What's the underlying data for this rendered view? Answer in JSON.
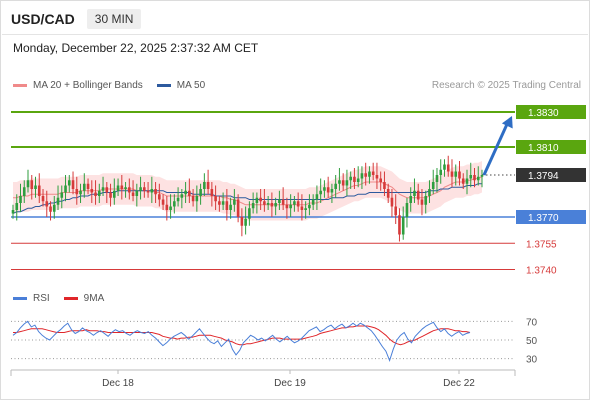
{
  "header": {
    "symbol": "USD/CAD",
    "timeframe": "30 MIN",
    "timestamp": "Monday, December 22, 2025 2:37:32 AM CET"
  },
  "legend": {
    "ma20_label": "MA 20 + Bollinger Bands",
    "ma50_label": "MA 50",
    "credit": "Research © 2025 Trading Central"
  },
  "rsi_legend": {
    "rsi_label": "RSI",
    "ma_label": "9MA"
  },
  "colors": {
    "ma20": "#f08a8a",
    "ma50": "#2d5a9e",
    "band_fill": "#fde2e2",
    "candle_up": "#2e9e3e",
    "candle_down": "#d63a3a",
    "target_green": "#5aa60f",
    "pivot_blue": "#4a80d8",
    "support_red": "#d63a3a",
    "arrow": "#2e6dc4",
    "rsi_line": "#4a7fd8",
    "rsi_ma": "#e0262a"
  },
  "chart_data": [
    {
      "type": "candlestick",
      "title": "USD/CAD 30 MIN",
      "ylim": [
        1.3734,
        1.3838
      ],
      "x_tick_labels": [
        "Dec 18",
        "Dec 19",
        "Dec 22"
      ],
      "current_price": 1.3794,
      "levels": [
        {
          "value": 1.383,
          "label": "1.3830",
          "role": "target",
          "color": "#5aa60f"
        },
        {
          "value": 1.381,
          "label": "1.3810",
          "role": "target",
          "color": "#5aa60f"
        },
        {
          "value": 1.3794,
          "label": "1.3794",
          "role": "last price",
          "color": "#444444"
        },
        {
          "value": 1.377,
          "label": "1.3770",
          "role": "pivot",
          "color": "#4a80d8"
        },
        {
          "value": 1.3755,
          "label": "1.3755",
          "role": "support",
          "color": "#d63a3a"
        },
        {
          "value": 1.374,
          "label": "1.3740",
          "role": "support",
          "color": "#d63a3a"
        }
      ],
      "close_series": [
        1.3774,
        1.3778,
        1.3782,
        1.3787,
        1.3791,
        1.3786,
        1.3788,
        1.3782,
        1.3779,
        1.3776,
        1.3773,
        1.3777,
        1.3781,
        1.3784,
        1.3788,
        1.3791,
        1.3786,
        1.3783,
        1.3785,
        1.3789,
        1.3786,
        1.3784,
        1.3782,
        1.3785,
        1.3787,
        1.3784,
        1.3781,
        1.3785,
        1.3788,
        1.3786,
        1.3787,
        1.3784,
        1.3782,
        1.3785,
        1.3787,
        1.3785,
        1.3784,
        1.3786,
        1.3783,
        1.378,
        1.3777,
        1.3774,
        1.3776,
        1.3779,
        1.3781,
        1.3783,
        1.3785,
        1.3782,
        1.3779,
        1.3782,
        1.3786,
        1.379,
        1.3786,
        1.3782,
        1.3779,
        1.3777,
        1.3779,
        1.3774,
        1.3777,
        1.378,
        1.377,
        1.3765,
        1.3769,
        1.3775,
        1.3778,
        1.3781,
        1.3779,
        1.3777,
        1.3778,
        1.3776,
        1.3778,
        1.378,
        1.3777,
        1.3775,
        1.3777,
        1.3779,
        1.3776,
        1.3774,
        1.3775,
        1.3777,
        1.378,
        1.3783,
        1.3785,
        1.3787,
        1.3784,
        1.3786,
        1.3789,
        1.3791,
        1.3788,
        1.3791,
        1.3793,
        1.379,
        1.3792,
        1.3795,
        1.3793,
        1.3796,
        1.3794,
        1.3792,
        1.379,
        1.3786,
        1.3781,
        1.3776,
        1.3771,
        1.376,
        1.377,
        1.3778,
        1.3782,
        1.3785,
        1.378,
        1.3777,
        1.3782,
        1.3786,
        1.379,
        1.3794,
        1.3797,
        1.38,
        1.3796,
        1.3793,
        1.3796,
        1.3792,
        1.3789,
        1.3792,
        1.3794,
        1.3791,
        1.3793,
        1.3794
      ],
      "ma20": [
        1.3781,
        1.3781,
        1.3782,
        1.3782,
        1.3782,
        1.3783,
        1.3783,
        1.3783,
        1.3783,
        1.3783,
        1.3783,
        1.3783,
        1.3783,
        1.3784,
        1.3784,
        1.3784,
        1.3784,
        1.3784,
        1.3785,
        1.3785,
        1.3785,
        1.3785,
        1.3785,
        1.3785,
        1.3786,
        1.3786,
        1.3786,
        1.3786,
        1.3786,
        1.3786,
        1.3786,
        1.3786,
        1.3786,
        1.3785,
        1.3785,
        1.3785,
        1.3785,
        1.3785,
        1.3784,
        1.3784,
        1.3783,
        1.3782,
        1.3782,
        1.3782,
        1.3782,
        1.3782,
        1.3782,
        1.3782,
        1.3782,
        1.3782,
        1.3782,
        1.3782,
        1.3782,
        1.3782,
        1.3782,
        1.3782,
        1.3781,
        1.3781,
        1.378,
        1.378,
        1.3779,
        1.3778,
        1.3777,
        1.3777,
        1.3777,
        1.3777,
        1.3777,
        1.3777,
        1.3777,
        1.3777,
        1.3777,
        1.3777,
        1.3777,
        1.3777,
        1.3777,
        1.3777,
        1.3777,
        1.3777,
        1.3777,
        1.3778,
        1.3778,
        1.3778,
        1.3779,
        1.378,
        1.3781,
        1.3782,
        1.3783,
        1.3784,
        1.3785,
        1.3786,
        1.3787,
        1.3788,
        1.3788,
        1.3789,
        1.379,
        1.379,
        1.379,
        1.379,
        1.379,
        1.3789,
        1.3788,
        1.3787,
        1.3785,
        1.3783,
        1.3782,
        1.3781,
        1.3781,
        1.3781,
        1.3781,
        1.3781,
        1.3781,
        1.3782,
        1.3783,
        1.3784,
        1.3785,
        1.3787,
        1.3788,
        1.3789,
        1.379,
        1.379,
        1.379,
        1.3791,
        1.3791,
        1.3792,
        1.3792,
        1.3793
      ],
      "ma50": [
        1.3772,
        1.3773,
        1.3773,
        1.3774,
        1.3775,
        1.3775,
        1.3776,
        1.3776,
        1.3777,
        1.3777,
        1.3778,
        1.3778,
        1.3779,
        1.3779,
        1.378,
        1.378,
        1.3781,
        1.3781,
        1.3782,
        1.3782,
        1.3782,
        1.3783,
        1.3783,
        1.3783,
        1.3784,
        1.3784,
        1.3784,
        1.3784,
        1.3785,
        1.3785,
        1.3785,
        1.3785,
        1.3785,
        1.3785,
        1.3785,
        1.3785,
        1.3785,
        1.3785,
        1.3785,
        1.3785,
        1.3785,
        1.3784,
        1.3784,
        1.3784,
        1.3784,
        1.3784,
        1.3784,
        1.3784,
        1.3783,
        1.3783,
        1.3783,
        1.3783,
        1.3783,
        1.3783,
        1.3782,
        1.3782,
        1.3782,
        1.3782,
        1.3782,
        1.3781,
        1.3781,
        1.3781,
        1.3781,
        1.378,
        1.378,
        1.378,
        1.378,
        1.378,
        1.378,
        1.378,
        1.378,
        1.378,
        1.378,
        1.378,
        1.378,
        1.378,
        1.378,
        1.378,
        1.378,
        1.378,
        1.378,
        1.378,
        1.378,
        1.378,
        1.378,
        1.3781,
        1.3781,
        1.3781,
        1.3781,
        1.3782,
        1.3782,
        1.3782,
        1.3783,
        1.3783,
        1.3783,
        1.3784,
        1.3784,
        1.3784,
        1.3784,
        1.3784,
        1.3784,
        1.3784,
        1.3784,
        1.3784,
        1.3784,
        1.3784,
        1.3784,
        1.3784,
        1.3784,
        1.3784,
        1.3784,
        1.3785,
        1.3785,
        1.3785,
        1.3786,
        1.3786,
        1.3786,
        1.3787,
        1.3787,
        1.3787,
        1.3787,
        1.3788,
        1.3788,
        1.3788,
        1.3789,
        1.3789
      ],
      "bollinger_halfwidth": 0.0009
    },
    {
      "type": "line",
      "title": "RSI",
      "ylim": [
        20,
        80
      ],
      "ytick_labels": [
        "70",
        "50",
        "30"
      ],
      "series": [
        {
          "name": "RSI",
          "values": [
            55,
            58,
            63,
            67,
            70,
            64,
            66,
            59,
            55,
            52,
            50,
            54,
            58,
            61,
            65,
            68,
            61,
            57,
            59,
            63,
            60,
            58,
            55,
            58,
            60,
            57,
            54,
            58,
            61,
            59,
            60,
            57,
            55,
            58,
            60,
            58,
            57,
            59,
            55,
            52,
            48,
            44,
            47,
            51,
            54,
            56,
            58,
            55,
            51,
            54,
            58,
            62,
            57,
            52,
            48,
            46,
            49,
            43,
            47,
            51,
            40,
            34,
            39,
            47,
            51,
            55,
            53,
            50,
            52,
            49,
            52,
            55,
            51,
            48,
            51,
            54,
            50,
            47,
            49,
            52,
            56,
            60,
            62,
            64,
            59,
            61,
            64,
            66,
            62,
            65,
            67,
            63,
            65,
            68,
            65,
            68,
            66,
            63,
            60,
            55,
            49,
            43,
            38,
            28,
            40,
            50,
            55,
            58,
            51,
            47,
            54,
            58,
            62,
            65,
            67,
            69,
            63,
            59,
            62,
            57,
            54,
            57,
            59,
            55,
            57,
            58
          ]
        },
        {
          "name": "9MA",
          "values": [
            58,
            58,
            59,
            60,
            61,
            62,
            62,
            62,
            62,
            61,
            60,
            59,
            58,
            58,
            58,
            59,
            60,
            60,
            60,
            60,
            61,
            60,
            60,
            60,
            59,
            59,
            58,
            58,
            58,
            58,
            58,
            58,
            58,
            58,
            58,
            58,
            58,
            58,
            58,
            57,
            56,
            54,
            53,
            52,
            52,
            51,
            52,
            52,
            53,
            53,
            54,
            55,
            55,
            55,
            55,
            54,
            53,
            52,
            50,
            49,
            48,
            46,
            45,
            45,
            46,
            46,
            47,
            48,
            49,
            50,
            51,
            52,
            52,
            52,
            51,
            51,
            51,
            51,
            51,
            51,
            52,
            53,
            54,
            55,
            57,
            58,
            59,
            60,
            61,
            62,
            63,
            63,
            64,
            64,
            65,
            65,
            65,
            65,
            64,
            63,
            61,
            58,
            55,
            51,
            48,
            46,
            45,
            46,
            48,
            49,
            50,
            52,
            54,
            56,
            58,
            60,
            61,
            62,
            62,
            62,
            61,
            60,
            60,
            59,
            59,
            58
          ]
        }
      ]
    }
  ]
}
